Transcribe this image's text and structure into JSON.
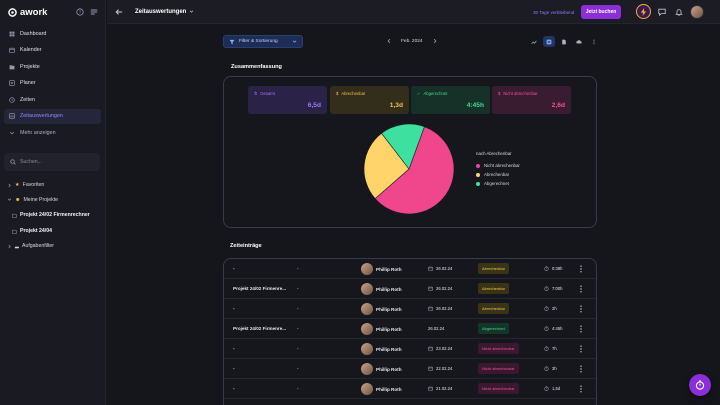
{
  "brand": {
    "name": "awork"
  },
  "sidebar": {
    "nav": [
      {
        "label": "Dashboard",
        "icon": "dashboard-icon"
      },
      {
        "label": "Kalender",
        "icon": "calendar-icon"
      },
      {
        "label": "Projekte",
        "icon": "folder-icon"
      },
      {
        "label": "Planer",
        "icon": "planner-icon"
      },
      {
        "label": "Zeiten",
        "icon": "clock-icon"
      },
      {
        "label": "Zeitauswertungen",
        "icon": "chart-icon",
        "active": true
      },
      {
        "label": "Mehr anzeigen",
        "icon": "chevron-down-icon"
      }
    ],
    "search_placeholder": "Suchen...",
    "tree": {
      "favorites": "Favoriten",
      "my_projects": "Meine Projekte",
      "projects": [
        "Projekt 24/02 Firmenrechner",
        "Projekt 24/04"
      ],
      "task_filters": "Aufgabenfilter"
    }
  },
  "header": {
    "title": "Zeitauswertungen",
    "trial": "30 Tage verbleibend",
    "book": "Jetzt buchen"
  },
  "toolbar": {
    "filter": "Filter & Sortierung",
    "period": "Feb. 2024"
  },
  "summary": {
    "title": "Zusammenfassung",
    "kpis": [
      {
        "label": "Gesamt",
        "value": "6,5d",
        "bg": "#2b2247",
        "fg": "#9b7bff"
      },
      {
        "label": "Abrechenbar",
        "value": "1,3d",
        "bg": "#332d1c",
        "fg": "#f3c34a"
      },
      {
        "label": "Abgerechnet",
        "value": "4:45h",
        "bg": "#163127",
        "fg": "#49d59a"
      },
      {
        "label": "Nicht abrechenbar",
        "value": "2,6d",
        "bg": "#3a1c30",
        "fg": "#f0529a"
      }
    ],
    "legend_title": "nach Abrechenbar"
  },
  "chart_data": {
    "type": "pie",
    "title": "nach Abrechenbar",
    "slices": [
      {
        "label": "Nicht abrechenbar",
        "value": 58,
        "color": "#f0468c"
      },
      {
        "label": "Abrechenbar",
        "value": 26,
        "color": "#ffd46a"
      },
      {
        "label": "Abgerechnet",
        "value": 16,
        "color": "#3ee0a0"
      }
    ],
    "legend_position": "right"
  },
  "entries": {
    "title": "Zeiteinträge",
    "rows": [
      {
        "project": "-",
        "task": "-",
        "user": "Phillip Roth",
        "date": "26.02.24",
        "status": "Abrechenbar",
        "kind": "abr",
        "duration": "0:38h"
      },
      {
        "project": "Projekt 24/02 Firmenre...",
        "task": "-",
        "user": "Phillip Roth",
        "date": "26.02.24",
        "status": "Abrechenbar",
        "kind": "abr",
        "duration": "7:00h"
      },
      {
        "project": "-",
        "task": "-",
        "user": "Phillip Roth",
        "date": "26.02.24",
        "status": "Abrechenbar",
        "kind": "abr",
        "duration": "2h"
      },
      {
        "project": "Projekt 24/02 Firmenre...",
        "task": "-",
        "user": "Phillip Roth",
        "date": "26.02.24",
        "status": "Abgerechnet",
        "kind": "abg",
        "duration": "4:45h"
      },
      {
        "project": "-",
        "task": "-",
        "user": "Phillip Roth",
        "date": "23.02.24",
        "status": "Nicht abrechenbar",
        "kind": "nicht",
        "duration": "7h"
      },
      {
        "project": "-",
        "task": "-",
        "user": "Phillip Roth",
        "date": "22.02.24",
        "status": "Nicht abrechenbar",
        "kind": "nicht",
        "duration": "3h"
      },
      {
        "project": "-",
        "task": "-",
        "user": "Phillip Roth",
        "date": "21.02.24",
        "status": "Nicht abrechenbar",
        "kind": "nicht",
        "duration": "1,5d"
      }
    ]
  }
}
